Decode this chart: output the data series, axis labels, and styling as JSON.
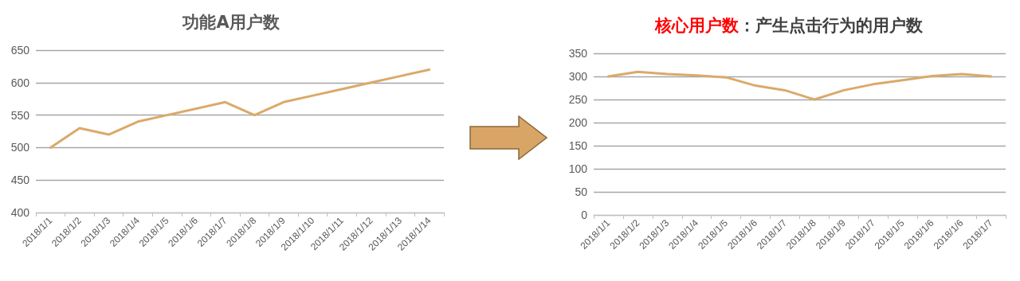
{
  "chart_data": [
    {
      "type": "line",
      "title": "功能A用户数",
      "categories": [
        "2018/1/1",
        "2018/1/2",
        "2018/1/3",
        "2018/1/4",
        "2018/1/5",
        "2018/1/6",
        "2018/1/7",
        "2018/1/8",
        "2018/1/9",
        "2018/1/10",
        "2018/1/11",
        "2018/1/12",
        "2018/1/13",
        "2018/1/14"
      ],
      "series": [
        {
          "color": "#dba96a",
          "values": [
            500,
            530,
            520,
            540,
            550,
            560,
            570,
            550,
            570,
            580,
            590,
            600,
            610,
            620
          ]
        }
      ],
      "ylim": [
        400,
        650
      ],
      "yticks": [
        400,
        450,
        500,
        550,
        600,
        650
      ],
      "grid": "y",
      "marker": "none",
      "line_style": "solid"
    },
    {
      "type": "line",
      "title": "核心用户数",
      "subtitle": "：产生点击行为的用户数",
      "categories": [
        "2018/1/1",
        "2018/1/2",
        "2018/1/3",
        "2018/1/4",
        "2018/1/5",
        "2018/1/6",
        "2018/1/7",
        "2018/1/8",
        "2018/1/9",
        "2018/1/7",
        "2018/1/5",
        "2018/1/6",
        "2018/1/6",
        "2018/1/7"
      ],
      "series": [
        {
          "color": "#dba96a",
          "values": [
            300,
            310,
            305,
            302,
            298,
            280,
            270,
            250,
            270,
            283,
            292,
            301,
            305,
            300
          ]
        }
      ],
      "ylim": [
        0,
        350
      ],
      "yticks": [
        0,
        50,
        100,
        150,
        200,
        250,
        300,
        350
      ],
      "grid": "y",
      "marker": "none",
      "line_style": "solid"
    }
  ]
}
